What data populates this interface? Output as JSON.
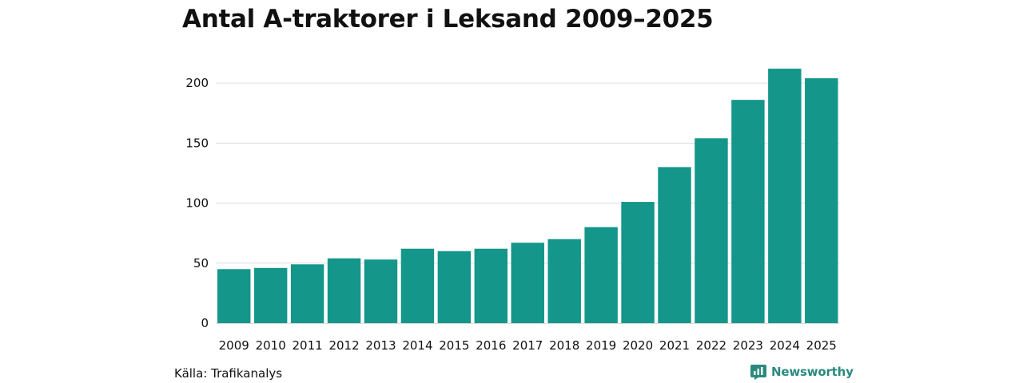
{
  "chart_data": {
    "type": "bar",
    "title": "Antal A-traktorer i Leksand 2009–2025",
    "categories": [
      "2009",
      "2010",
      "2011",
      "2012",
      "2013",
      "2014",
      "2015",
      "2016",
      "2017",
      "2018",
      "2019",
      "2020",
      "2021",
      "2022",
      "2023",
      "2024",
      "2025"
    ],
    "values": [
      45,
      46,
      49,
      54,
      53,
      62,
      60,
      62,
      67,
      70,
      80,
      101,
      130,
      154,
      186,
      212,
      204
    ],
    "xlabel": "",
    "ylabel": "",
    "ylim": [
      0,
      222
    ],
    "yticks": [
      0,
      50,
      100,
      150,
      200
    ],
    "grid": true,
    "bar_color": "#14968a"
  },
  "footer": {
    "source": "Källa: Trafikanalys",
    "brand": "Newsworthy"
  },
  "colors": {
    "bar": "#14968a",
    "brand": "#2a8a7f",
    "grid": "#dddddd"
  }
}
